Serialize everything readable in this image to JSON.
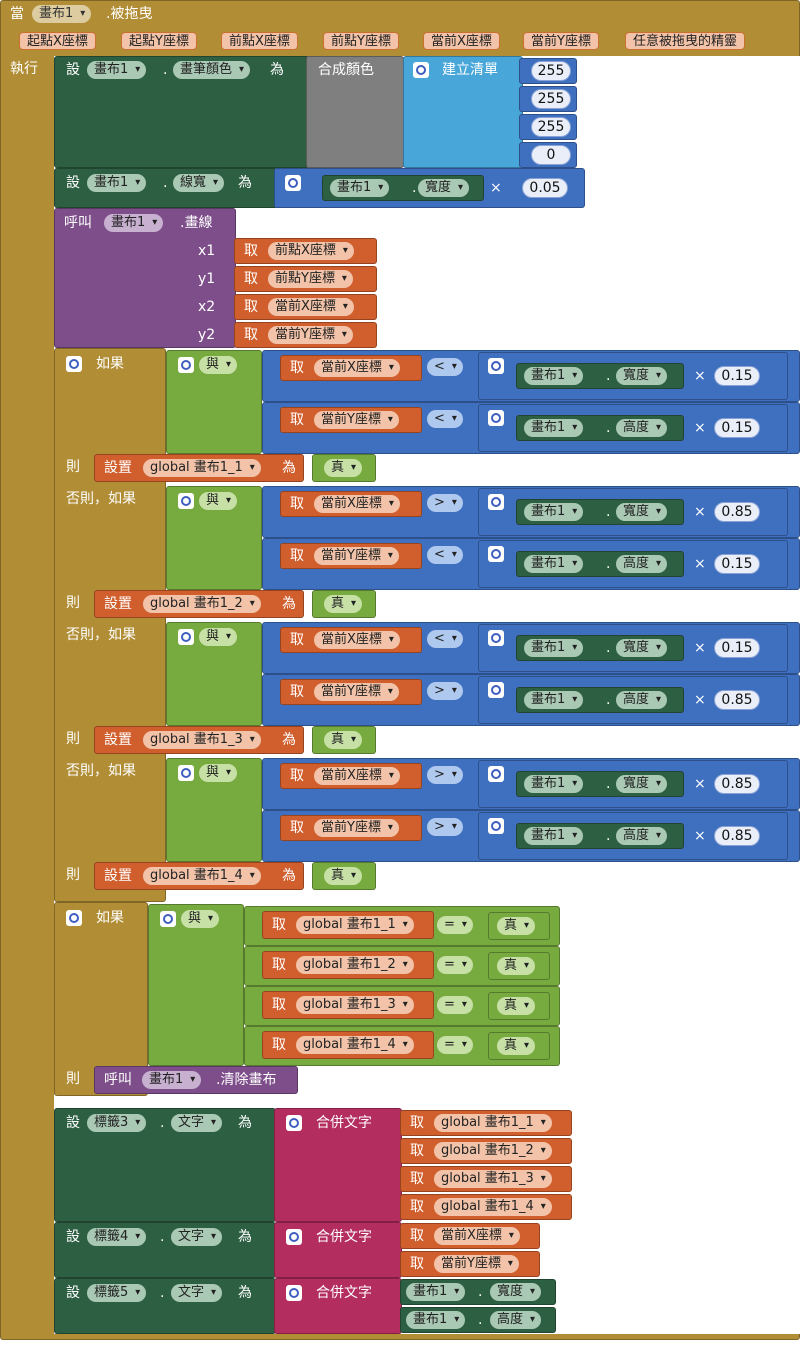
{
  "event": {
    "when": "當",
    "component": "畫布1",
    "event_name": ".被拖曳",
    "params": [
      "起點X座標",
      "起點Y座標",
      "前點X座標",
      "前點Y座標",
      "當前X座標",
      "當前Y座標",
      "任意被拖曳的精靈"
    ],
    "do": "執行"
  },
  "words": {
    "set": "設",
    "as": "為",
    "dot": ".",
    "call": "呼叫",
    "get": "取",
    "if": "如果",
    "then": "則",
    "elseif": "否則，如果",
    "setvar": "設置",
    "and": "與",
    "true": "真",
    "times": "×",
    "lt": "<",
    "gt": ">",
    "eq": "="
  },
  "color_block": {
    "component": "畫布1",
    "prop": "畫筆顏色",
    "make_color": "合成顏色",
    "make_list": "建立清單",
    "values": [
      "255",
      "255",
      "255",
      "0"
    ]
  },
  "width_block": {
    "component": "畫布1",
    "prop": "線寬",
    "ref_component": "畫布1",
    "ref_prop": "寬度",
    "factor": "0.05"
  },
  "draw_line": {
    "component": "畫布1",
    "method": ".畫線",
    "args": [
      {
        "name": "x1",
        "var": "前點X座標"
      },
      {
        "name": "y1",
        "var": "前點Y座標"
      },
      {
        "name": "x2",
        "var": "當前X座標"
      },
      {
        "name": "y2",
        "var": "當前Y座標"
      }
    ]
  },
  "canvas": {
    "component": "畫布1",
    "width": "寬度",
    "height": "高度"
  },
  "conditions": [
    {
      "x_op": "<",
      "x_factor": "0.15",
      "y_op": "<",
      "y_factor": "0.15",
      "global": "global 畫布1_1"
    },
    {
      "x_op": ">",
      "x_factor": "0.85",
      "y_op": "<",
      "y_factor": "0.15",
      "global": "global 畫布1_2"
    },
    {
      "x_op": "<",
      "x_factor": "0.15",
      "y_op": ">",
      "y_factor": "0.85",
      "global": "global 畫布1_3"
    },
    {
      "x_op": ">",
      "x_factor": "0.85",
      "y_op": ">",
      "y_factor": "0.85",
      "global": "global 畫布1_4"
    }
  ],
  "clear": {
    "component": "畫布1",
    "method": ".清除畫布"
  },
  "labels": [
    {
      "component": "標籤3",
      "prop": "文字",
      "join": "合併文字",
      "items": [
        "global 畫布1_1",
        "global 畫布1_2",
        "global 畫布1_3",
        "global 畫布1_4"
      ]
    },
    {
      "component": "標籤4",
      "prop": "文字",
      "join": "合併文字",
      "items": [
        "當前X座標",
        "當前Y座標"
      ]
    },
    {
      "component": "標籤5",
      "prop": "文字",
      "join": "合併文字",
      "canvas_items": [
        {
          "component": "畫布1",
          "prop": "寬度"
        },
        {
          "component": "畫布1",
          "prop": "高度"
        }
      ]
    }
  ]
}
